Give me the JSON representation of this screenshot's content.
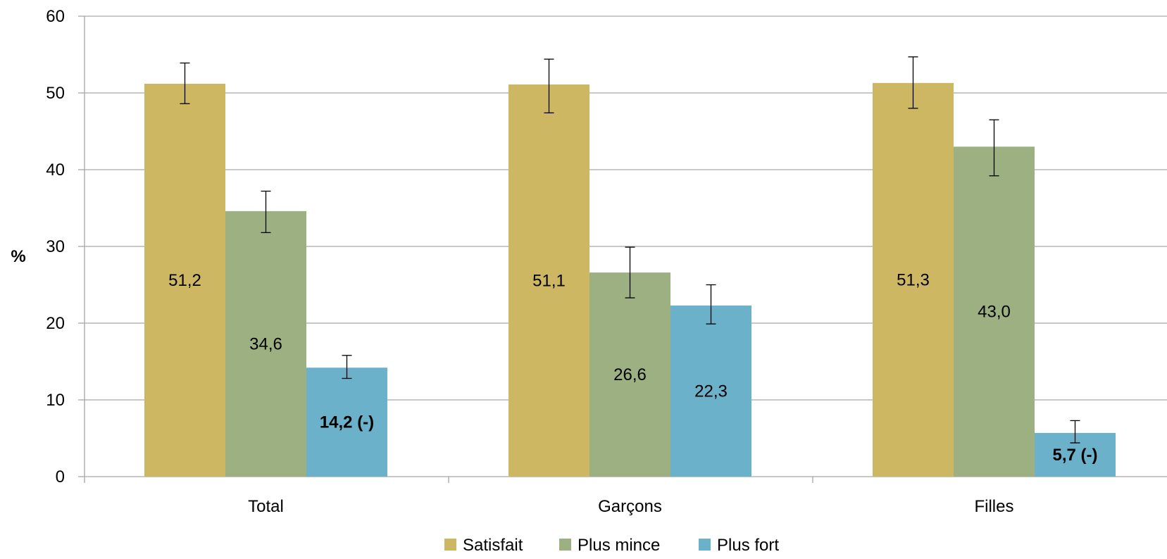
{
  "chart_data": {
    "type": "bar",
    "ylabel": "%",
    "ylim": [
      0,
      60
    ],
    "yticks": [
      "0",
      "10",
      "20",
      "30",
      "40",
      "50",
      "60"
    ],
    "grid": true,
    "legend_position": "bottom",
    "categories": [
      "Total",
      "Garçons",
      "Filles"
    ],
    "series": [
      {
        "name": "Satisfait",
        "color": "#CDB763",
        "values": [
          51.2,
          51.1,
          51.3
        ],
        "labels": [
          "51,2",
          "51,1",
          "51,3"
        ],
        "label_bold": [
          false,
          false,
          false
        ],
        "error": [
          [
            48.6,
            53.9
          ],
          [
            47.4,
            54.4
          ],
          [
            48.0,
            54.7
          ]
        ]
      },
      {
        "name": "Plus mince",
        "color": "#9DB081",
        "values": [
          34.6,
          26.6,
          43.0
        ],
        "labels": [
          "34,6",
          "26,6",
          "43,0"
        ],
        "label_bold": [
          false,
          false,
          false
        ],
        "error": [
          [
            31.8,
            37.2
          ],
          [
            23.3,
            29.9
          ],
          [
            39.2,
            46.5
          ]
        ]
      },
      {
        "name": "Plus fort",
        "color": "#6BB1C9",
        "values": [
          14.2,
          22.3,
          5.7
        ],
        "labels": [
          "14,2 (-)",
          "22,3",
          "5,7 (-)"
        ],
        "label_bold": [
          true,
          false,
          true
        ],
        "error": [
          [
            12.8,
            15.8
          ],
          [
            19.9,
            25.0
          ],
          [
            4.4,
            7.3
          ]
        ]
      }
    ]
  }
}
